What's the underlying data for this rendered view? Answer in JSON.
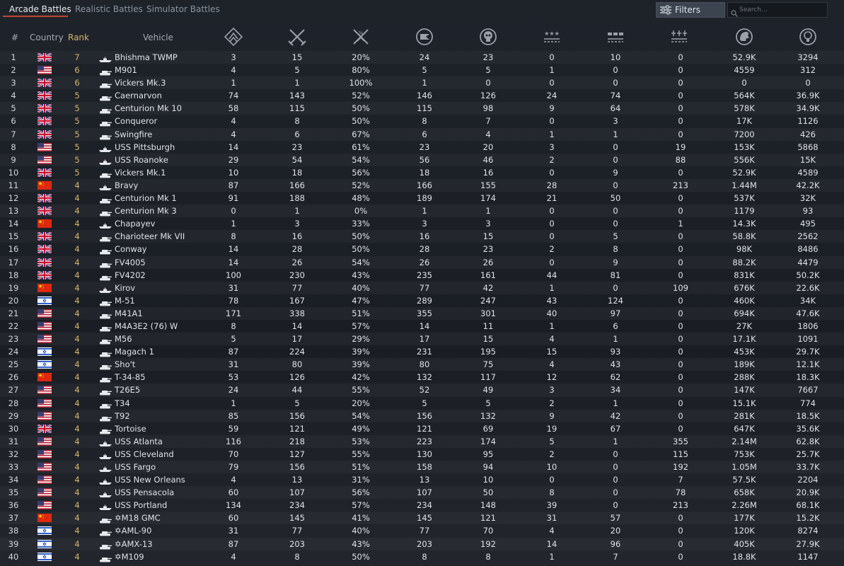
{
  "tabs": [
    {
      "label": "Arcade Battles",
      "active": true
    },
    {
      "label": "Realistic Battles",
      "active": false
    },
    {
      "label": "Simulator Battles",
      "active": false
    }
  ],
  "filters_label": "Filters",
  "search": {
    "placeholder": "Search..."
  },
  "columns": {
    "index": "#",
    "country": "Country",
    "rank": "Rank",
    "vehicle": "Vehicle"
  },
  "stat_icons": [
    "battles-icon",
    "victories-icon",
    "win-rate-icon",
    "respawns-icon",
    "deaths-icon",
    "air-kills-icon",
    "ground-kills-icon",
    "naval-kills-icon",
    "silver-lions-icon",
    "research-points-icon"
  ],
  "colors": {
    "accent": "#c3452f",
    "rank": "#d8b56a",
    "text": "#dfe3e8",
    "header": "#a4abb3"
  },
  "rows": [
    {
      "n": "1",
      "c": "uk",
      "r": "7",
      "t": "ship",
      "v": "Bhishma TWMP",
      "s": [
        "3",
        "15",
        "20%",
        "24",
        "23",
        "0",
        "10",
        "0",
        "52.9K",
        "3294"
      ]
    },
    {
      "n": "2",
      "c": "us",
      "r": "6",
      "t": "tank",
      "v": "M901",
      "s": [
        "4",
        "5",
        "80%",
        "5",
        "5",
        "1",
        "0",
        "0",
        "4559",
        "312"
      ]
    },
    {
      "n": "3",
      "c": "uk",
      "r": "6",
      "t": "tank",
      "v": "Vickers Mk.3",
      "s": [
        "1",
        "1",
        "100%",
        "1",
        "0",
        "0",
        "0",
        "0",
        "0",
        "0"
      ]
    },
    {
      "n": "4",
      "c": "uk",
      "r": "5",
      "t": "tank",
      "v": "Caernarvon",
      "s": [
        "74",
        "143",
        "52%",
        "146",
        "126",
        "24",
        "74",
        "0",
        "564K",
        "36.9K"
      ]
    },
    {
      "n": "5",
      "c": "uk",
      "r": "5",
      "t": "tank",
      "v": "Centurion Mk 10",
      "s": [
        "58",
        "115",
        "50%",
        "115",
        "98",
        "9",
        "64",
        "0",
        "578K",
        "34.9K"
      ]
    },
    {
      "n": "6",
      "c": "uk",
      "r": "5",
      "t": "tank",
      "v": "Conqueror",
      "s": [
        "4",
        "8",
        "50%",
        "8",
        "7",
        "0",
        "3",
        "0",
        "17K",
        "1126"
      ]
    },
    {
      "n": "7",
      "c": "uk",
      "r": "5",
      "t": "tank",
      "v": "Swingfire",
      "s": [
        "4",
        "6",
        "67%",
        "6",
        "4",
        "1",
        "1",
        "0",
        "7200",
        "426"
      ]
    },
    {
      "n": "8",
      "c": "us",
      "r": "5",
      "t": "ship",
      "v": "USS Pittsburgh",
      "s": [
        "14",
        "23",
        "61%",
        "23",
        "20",
        "3",
        "0",
        "19",
        "153K",
        "5868"
      ]
    },
    {
      "n": "9",
      "c": "us",
      "r": "5",
      "t": "ship",
      "v": "USS Roanoke",
      "s": [
        "29",
        "54",
        "54%",
        "56",
        "46",
        "2",
        "0",
        "88",
        "556K",
        "15K"
      ]
    },
    {
      "n": "10",
      "c": "uk",
      "r": "5",
      "t": "tank",
      "v": "Vickers Mk.1",
      "s": [
        "10",
        "18",
        "56%",
        "18",
        "16",
        "0",
        "9",
        "0",
        "52.9K",
        "4589"
      ]
    },
    {
      "n": "11",
      "c": "cn",
      "r": "4",
      "t": "ship",
      "v": "Bravy",
      "s": [
        "87",
        "166",
        "52%",
        "166",
        "155",
        "28",
        "0",
        "213",
        "1.44M",
        "42.2K"
      ]
    },
    {
      "n": "12",
      "c": "uk",
      "r": "4",
      "t": "tank",
      "v": "Centurion Mk 1",
      "s": [
        "91",
        "188",
        "48%",
        "189",
        "174",
        "21",
        "50",
        "0",
        "537K",
        "32K"
      ]
    },
    {
      "n": "13",
      "c": "uk",
      "r": "4",
      "t": "tank",
      "v": "Centurion Mk 3",
      "s": [
        "0",
        "1",
        "0%",
        "1",
        "1",
        "0",
        "0",
        "0",
        "1179",
        "93"
      ]
    },
    {
      "n": "14",
      "c": "cn",
      "r": "4",
      "t": "ship",
      "v": "Chapayev",
      "s": [
        "1",
        "3",
        "33%",
        "3",
        "3",
        "0",
        "0",
        "1",
        "14.3K",
        "495"
      ]
    },
    {
      "n": "15",
      "c": "uk",
      "r": "4",
      "t": "tank",
      "v": "Charioteer Mk VII",
      "s": [
        "8",
        "16",
        "50%",
        "16",
        "15",
        "0",
        "5",
        "0",
        "58.8K",
        "2562"
      ]
    },
    {
      "n": "16",
      "c": "uk",
      "r": "4",
      "t": "tank",
      "v": "Conway",
      "s": [
        "14",
        "28",
        "50%",
        "28",
        "23",
        "2",
        "8",
        "0",
        "98K",
        "8486"
      ]
    },
    {
      "n": "17",
      "c": "uk",
      "r": "4",
      "t": "tank",
      "v": "FV4005",
      "s": [
        "14",
        "26",
        "54%",
        "26",
        "26",
        "0",
        "9",
        "0",
        "88.2K",
        "4479"
      ]
    },
    {
      "n": "18",
      "c": "uk",
      "r": "4",
      "t": "tank",
      "v": "FV4202",
      "s": [
        "100",
        "230",
        "43%",
        "235",
        "161",
        "44",
        "81",
        "0",
        "831K",
        "50.2K"
      ]
    },
    {
      "n": "19",
      "c": "cn",
      "r": "4",
      "t": "ship",
      "v": "Kirov",
      "s": [
        "31",
        "77",
        "40%",
        "77",
        "42",
        "1",
        "0",
        "109",
        "676K",
        "22.6K"
      ]
    },
    {
      "n": "20",
      "c": "il",
      "r": "4",
      "t": "tank",
      "v": "M-51",
      "s": [
        "78",
        "167",
        "47%",
        "289",
        "247",
        "43",
        "124",
        "0",
        "460K",
        "34K"
      ]
    },
    {
      "n": "21",
      "c": "us",
      "r": "4",
      "t": "tank",
      "v": "M41A1",
      "s": [
        "171",
        "338",
        "51%",
        "355",
        "301",
        "40",
        "97",
        "0",
        "694K",
        "47.6K"
      ]
    },
    {
      "n": "22",
      "c": "us",
      "r": "4",
      "t": "tank",
      "v": "M4A3E2 (76) W",
      "s": [
        "8",
        "14",
        "57%",
        "14",
        "11",
        "1",
        "6",
        "0",
        "27K",
        "1806"
      ]
    },
    {
      "n": "23",
      "c": "us",
      "r": "4",
      "t": "tank",
      "v": "M56",
      "s": [
        "5",
        "17",
        "29%",
        "17",
        "15",
        "4",
        "1",
        "0",
        "17.1K",
        "1091"
      ]
    },
    {
      "n": "24",
      "c": "il",
      "r": "4",
      "t": "tank",
      "v": "Magach 1",
      "s": [
        "87",
        "224",
        "39%",
        "231",
        "195",
        "15",
        "93",
        "0",
        "453K",
        "29.7K"
      ]
    },
    {
      "n": "25",
      "c": "il",
      "r": "4",
      "t": "tank",
      "v": "Sho't",
      "s": [
        "31",
        "80",
        "39%",
        "80",
        "75",
        "4",
        "43",
        "0",
        "189K",
        "12.1K"
      ]
    },
    {
      "n": "26",
      "c": "cn",
      "r": "4",
      "t": "tank",
      "v": "T-34-85",
      "s": [
        "53",
        "126",
        "42%",
        "132",
        "117",
        "12",
        "62",
        "0",
        "288K",
        "18.3K"
      ]
    },
    {
      "n": "27",
      "c": "us",
      "r": "4",
      "t": "tank",
      "v": "T26E5",
      "s": [
        "24",
        "44",
        "55%",
        "52",
        "49",
        "3",
        "34",
        "0",
        "147K",
        "7667"
      ]
    },
    {
      "n": "28",
      "c": "us",
      "r": "4",
      "t": "tank",
      "v": "T34",
      "s": [
        "1",
        "5",
        "20%",
        "5",
        "5",
        "2",
        "1",
        "0",
        "15.1K",
        "774"
      ]
    },
    {
      "n": "29",
      "c": "us",
      "r": "4",
      "t": "tank",
      "v": "T92",
      "s": [
        "85",
        "156",
        "54%",
        "156",
        "132",
        "9",
        "42",
        "0",
        "281K",
        "18.5K"
      ]
    },
    {
      "n": "30",
      "c": "uk",
      "r": "4",
      "t": "tank",
      "v": "Tortoise",
      "s": [
        "59",
        "121",
        "49%",
        "121",
        "69",
        "19",
        "67",
        "0",
        "647K",
        "35.6K"
      ]
    },
    {
      "n": "31",
      "c": "us",
      "r": "4",
      "t": "ship",
      "v": "USS Atlanta",
      "s": [
        "116",
        "218",
        "53%",
        "223",
        "174",
        "5",
        "1",
        "355",
        "2.14M",
        "62.8K"
      ]
    },
    {
      "n": "32",
      "c": "us",
      "r": "4",
      "t": "ship",
      "v": "USS Cleveland",
      "s": [
        "70",
        "127",
        "55%",
        "130",
        "95",
        "2",
        "0",
        "115",
        "753K",
        "25.7K"
      ]
    },
    {
      "n": "33",
      "c": "us",
      "r": "4",
      "t": "ship",
      "v": "USS Fargo",
      "s": [
        "79",
        "156",
        "51%",
        "158",
        "94",
        "10",
        "0",
        "192",
        "1.05M",
        "33.7K"
      ]
    },
    {
      "n": "34",
      "c": "us",
      "r": "4",
      "t": "ship",
      "v": "USS New Orleans",
      "s": [
        "4",
        "13",
        "31%",
        "13",
        "10",
        "0",
        "0",
        "7",
        "57.5K",
        "2204"
      ]
    },
    {
      "n": "35",
      "c": "us",
      "r": "4",
      "t": "ship",
      "v": "USS Pensacola",
      "s": [
        "60",
        "107",
        "56%",
        "107",
        "50",
        "8",
        "0",
        "78",
        "658K",
        "20.9K"
      ]
    },
    {
      "n": "36",
      "c": "us",
      "r": "4",
      "t": "ship",
      "v": "USS Portland",
      "s": [
        "134",
        "234",
        "57%",
        "234",
        "148",
        "39",
        "0",
        "213",
        "2.26M",
        "68.1K"
      ]
    },
    {
      "n": "37",
      "c": "cn",
      "r": "4",
      "t": "tank",
      "v": "✡M18 GMC",
      "s": [
        "60",
        "145",
        "41%",
        "145",
        "121",
        "31",
        "57",
        "0",
        "177K",
        "15.2K"
      ]
    },
    {
      "n": "38",
      "c": "il",
      "r": "4",
      "t": "tank",
      "v": "✡AML-90",
      "s": [
        "31",
        "77",
        "40%",
        "77",
        "70",
        "4",
        "20",
        "0",
        "120K",
        "8274"
      ]
    },
    {
      "n": "39",
      "c": "il",
      "r": "4",
      "t": "tank",
      "v": "✡AMX-13",
      "s": [
        "87",
        "203",
        "43%",
        "203",
        "192",
        "14",
        "96",
        "0",
        "405K",
        "27.9K"
      ]
    },
    {
      "n": "40",
      "c": "il",
      "r": "4",
      "t": "tank",
      "v": "✡M109",
      "s": [
        "4",
        "8",
        "50%",
        "8",
        "8",
        "1",
        "7",
        "0",
        "18.8K",
        "1147"
      ]
    }
  ]
}
